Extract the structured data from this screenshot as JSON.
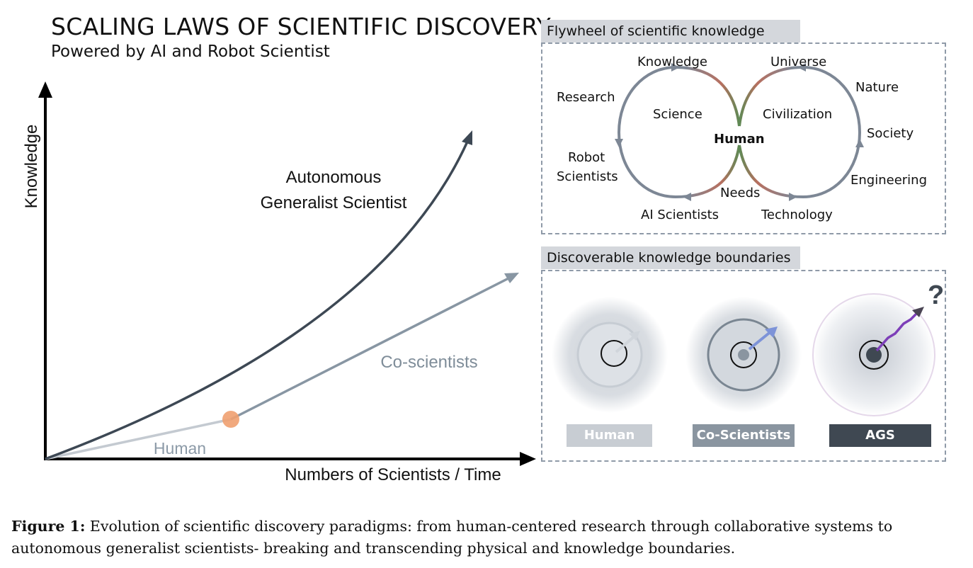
{
  "header": {
    "title": "SCALING LAWS OF SCIENTIFIC DISCOVERY",
    "subtitle": "Powered by AI and Robot Scientist"
  },
  "main_chart": {
    "ylabel": "Knowledge",
    "xlabel": "Numbers of Scientists / Time",
    "curves": {
      "ags": "Autonomous Generalist Scientist",
      "ags_line1": "Autonomous",
      "ags_line2": "Generalist Scientist",
      "co_scientists": "Co-scientists",
      "human": "Human"
    },
    "colors": {
      "ags": "#3d4854",
      "co_scientists": "#8896a3",
      "human": "#c4cad1",
      "marker": "#f0a070"
    }
  },
  "flywheel": {
    "header": "Flywheel of scientific knowledge",
    "center": "Human",
    "left_inner": "Science",
    "right_inner": "Civilization",
    "bottom_center": "Needs",
    "left_labels": [
      "Knowledge",
      "Research",
      "Robot",
      "Scientists",
      "AI Scientists"
    ],
    "right_labels": [
      "Universe",
      "Nature",
      "Society",
      "Engineering",
      "Technology"
    ]
  },
  "boundaries": {
    "header": "Discoverable knowledge boundaries",
    "items": [
      {
        "label": "Human",
        "color": "#c8cdd3"
      },
      {
        "label": "Co-Scientists",
        "color": "#8a95a0"
      },
      {
        "label": "AGS",
        "color": "#3f4852"
      }
    ],
    "question_mark": "?"
  },
  "caption": {
    "label": "Figure 1:",
    "text": " Evolution of scientific discovery paradigms: from human-centered research through collaborative systems to autonomous generalist scientists- breaking and transcending physical and knowledge boundaries."
  }
}
